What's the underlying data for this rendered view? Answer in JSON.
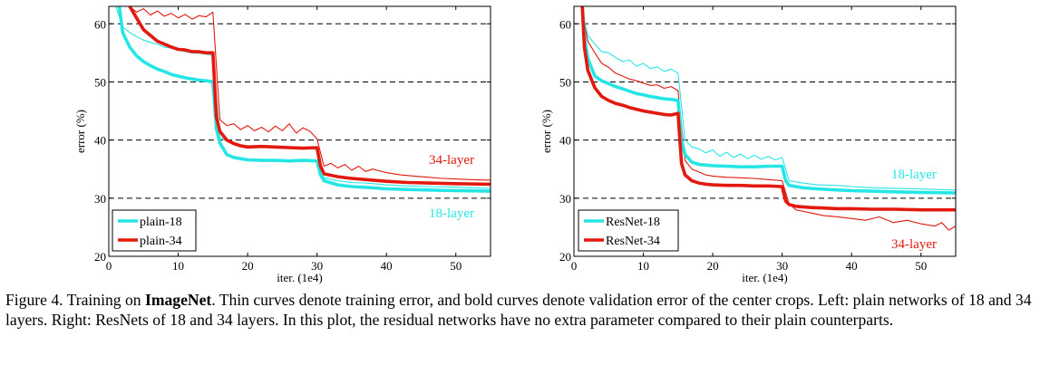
{
  "chart_data": [
    {
      "type": "line",
      "panel": "left",
      "xlabel": "iter. (1e4)",
      "ylabel": "error (%)",
      "xlim": [
        0,
        55
      ],
      "ylim": [
        20,
        63
      ],
      "xticks": [
        "0",
        "10",
        "20",
        "30",
        "40",
        "50"
      ],
      "yticks": [
        "20",
        "30",
        "40",
        "50",
        "60"
      ],
      "dashed_grid_y": [
        30,
        40,
        50,
        60
      ],
      "legend": [
        "plain-18",
        "plain-34"
      ],
      "annotations": [
        {
          "text": "34-layer",
          "color": "#e3190f"
        },
        {
          "text": "18-layer",
          "color": "#26e5e5"
        }
      ],
      "series": [
        {
          "name": "plain-18 training",
          "legend_name": "plain-18",
          "color": "#26e5e5",
          "width": "thin",
          "x": [
            1,
            2,
            3,
            4,
            5,
            6,
            7,
            8,
            9,
            10,
            11,
            12,
            13,
            14,
            15,
            16,
            17,
            18,
            19,
            20,
            21,
            22,
            23,
            24,
            25,
            26,
            27,
            28,
            29,
            30,
            31,
            33,
            35,
            37,
            40,
            43,
            46,
            50,
            52,
            55
          ],
          "y": [
            63,
            59.5,
            58.5,
            57.8,
            57.2,
            56.8,
            56.5,
            56,
            55.8,
            55.5,
            55.2,
            55,
            54.9,
            54.8,
            54.5,
            40.5,
            39.8,
            39.4,
            39.2,
            39,
            39,
            38.9,
            38.8,
            38.9,
            38.7,
            38.6,
            38.8,
            38.6,
            38.5,
            38.4,
            33.5,
            33,
            32.7,
            32.6,
            32.3,
            32.1,
            32,
            31.9,
            31.8,
            31.7
          ]
        },
        {
          "name": "plain-34 training",
          "legend_name": "plain-34",
          "color": "#e3190f",
          "width": "thin",
          "x": [
            3,
            4,
            5,
            6,
            7,
            8,
            9,
            10,
            11,
            12,
            13,
            14,
            15,
            16,
            17,
            18,
            19,
            20,
            21,
            22,
            23,
            24,
            25,
            26,
            27,
            28,
            29,
            30,
            31,
            32,
            33,
            34,
            35,
            36,
            37,
            38,
            40,
            42,
            44,
            46,
            48,
            50,
            52,
            55
          ],
          "y": [
            63,
            62,
            62.6,
            61.5,
            62.2,
            61.3,
            61.8,
            61,
            61.6,
            60.8,
            61.4,
            61.2,
            62,
            43.5,
            42.5,
            42.8,
            41.8,
            42.5,
            41.6,
            42.2,
            41.4,
            42.4,
            41.6,
            42.8,
            41.2,
            42.1,
            41.5,
            40.2,
            35.5,
            36,
            35.2,
            35.8,
            34.8,
            35.5,
            34.6,
            35,
            34.4,
            34,
            33.8,
            33.6,
            33.4,
            33.3,
            33.2,
            33.1
          ]
        },
        {
          "name": "plain-18 validation",
          "legend_name": "plain-18",
          "color": "#26e5e5",
          "width": "bold",
          "x": [
            1.5,
            2,
            3,
            4,
            5,
            6,
            7,
            8,
            9,
            10,
            11,
            12,
            13,
            14,
            15,
            15.5,
            16,
            17,
            18,
            19,
            20,
            22,
            24,
            26,
            28,
            30,
            30.5,
            31,
            33,
            35,
            38,
            40,
            43,
            46,
            50,
            55
          ],
          "y": [
            63,
            58.5,
            56,
            54.5,
            53.5,
            52.8,
            52.2,
            51.8,
            51.3,
            51,
            50.7,
            50.5,
            50.3,
            50.2,
            50,
            42,
            39.5,
            37.5,
            37,
            36.8,
            36.6,
            36.5,
            36.5,
            36.4,
            36.5,
            36.4,
            34,
            33,
            32.3,
            32,
            31.8,
            31.6,
            31.5,
            31.4,
            31.3,
            31.2
          ]
        },
        {
          "name": "plain-34 validation",
          "legend_name": "plain-34",
          "color": "#e3190f",
          "width": "bold",
          "x": [
            3,
            4,
            5,
            6,
            7,
            8,
            9,
            10,
            11,
            12,
            13,
            14,
            15,
            15.5,
            16,
            17,
            18,
            19,
            20,
            22,
            24,
            26,
            28,
            30,
            30.5,
            31,
            33,
            35,
            38,
            40,
            43,
            46,
            50,
            55
          ],
          "y": [
            63,
            61,
            59,
            58,
            57,
            56.5,
            56,
            55.6,
            55.5,
            55.2,
            55.2,
            55,
            55,
            44,
            41.5,
            40,
            39.4,
            39,
            38.8,
            38.9,
            38.8,
            38.7,
            38.6,
            38.7,
            35.5,
            34.2,
            33.7,
            33.4,
            33.1,
            32.9,
            32.7,
            32.6,
            32.5,
            32.4
          ]
        }
      ]
    },
    {
      "type": "line",
      "panel": "right",
      "xlabel": "iter. (1e4)",
      "ylabel": "error (%)",
      "xlim": [
        0,
        55
      ],
      "ylim": [
        20,
        63
      ],
      "xticks": [
        "0",
        "10",
        "20",
        "30",
        "40",
        "50"
      ],
      "yticks": [
        "20",
        "30",
        "40",
        "50",
        "60"
      ],
      "dashed_grid_y": [
        30,
        40,
        50,
        60
      ],
      "legend": [
        "ResNet-18",
        "ResNet-34"
      ],
      "annotations": [
        {
          "text": "18-layer",
          "color": "#26e5e5"
        },
        {
          "text": "34-layer",
          "color": "#e3190f"
        }
      ],
      "series": [
        {
          "name": "ResNet-18 training",
          "legend_name": "ResNet-18",
          "color": "#26e5e5",
          "width": "thin",
          "x": [
            1,
            2,
            3,
            4,
            5,
            6,
            7,
            8,
            9,
            10,
            11,
            12,
            13,
            14,
            15,
            16,
            17,
            18,
            19,
            20,
            21,
            22,
            23,
            24,
            25,
            26,
            27,
            28,
            29,
            30,
            31,
            33,
            35,
            38,
            40,
            43,
            46,
            50,
            52,
            55
          ],
          "y": [
            63,
            58,
            56.5,
            55.2,
            55,
            54.2,
            53.5,
            53.8,
            52.7,
            53.2,
            52.3,
            52.6,
            51.8,
            52.2,
            51.5,
            40,
            38.8,
            38.5,
            37.8,
            38.3,
            37.2,
            37.9,
            37,
            37.6,
            36.8,
            37.4,
            36.7,
            37.2,
            36.6,
            37,
            33,
            32.6,
            32.3,
            32.2,
            32,
            31.8,
            31.7,
            31.6,
            31.5,
            31.4
          ]
        },
        {
          "name": "ResNet-34 training",
          "legend_name": "ResNet-34",
          "color": "#e3190f",
          "width": "thin",
          "x": [
            1,
            2,
            3,
            4,
            5,
            6,
            7,
            8,
            9,
            10,
            11,
            12,
            13,
            14,
            15,
            16,
            17,
            18,
            19,
            20,
            22,
            24,
            26,
            28,
            30,
            31,
            32,
            34,
            36,
            38,
            40,
            42,
            44,
            46,
            48,
            50,
            52,
            53,
            54,
            55
          ],
          "y": [
            63,
            57,
            55,
            53.2,
            52.5,
            51.5,
            51,
            50.5,
            50.2,
            49.8,
            49.4,
            49.5,
            48.9,
            49.2,
            48.5,
            36.5,
            35,
            34.5,
            34,
            33.8,
            33.6,
            33.5,
            33.4,
            33.2,
            33,
            29,
            28,
            27.5,
            27,
            26.8,
            26.5,
            26.2,
            26.8,
            25.8,
            26.2,
            25.6,
            25.2,
            25.8,
            24.5,
            25.2
          ]
        },
        {
          "name": "ResNet-18 validation",
          "legend_name": "ResNet-18",
          "color": "#26e5e5",
          "width": "bold",
          "x": [
            1.2,
            1.5,
            2,
            3,
            4,
            5,
            6,
            7,
            8,
            9,
            10,
            11,
            12,
            13,
            14,
            15,
            15.5,
            16,
            17,
            18,
            20,
            22,
            24,
            26,
            28,
            30,
            30.5,
            31,
            33,
            35,
            38,
            40,
            43,
            46,
            50,
            55
          ],
          "y": [
            63,
            58,
            54,
            51,
            50.2,
            49.7,
            49.2,
            48.8,
            48.4,
            48,
            47.8,
            47.5,
            47.3,
            47.1,
            47,
            46.8,
            40,
            37.5,
            36.2,
            35.8,
            35.6,
            35.5,
            35.4,
            35.4,
            35.5,
            35.5,
            33,
            32.2,
            31.8,
            31.6,
            31.4,
            31.3,
            31.2,
            31.1,
            31,
            30.9
          ]
        },
        {
          "name": "ResNet-34 validation",
          "legend_name": "ResNet-34",
          "color": "#e3190f",
          "width": "bold",
          "x": [
            1.2,
            1.5,
            2,
            3,
            4,
            5,
            6,
            7,
            8,
            9,
            10,
            11,
            12,
            13,
            14,
            15,
            15.5,
            16,
            17,
            18,
            19,
            20,
            22,
            24,
            26,
            28,
            30,
            30.5,
            31,
            32,
            34,
            36,
            38,
            40,
            43,
            46,
            50,
            55
          ],
          "y": [
            63,
            56,
            52,
            49,
            47.5,
            46.8,
            46.3,
            46,
            45.6,
            45.3,
            45,
            44.8,
            44.6,
            44.4,
            44.3,
            44.6,
            36,
            34,
            33,
            32.6,
            32.4,
            32.3,
            32.2,
            32.2,
            32.1,
            32.1,
            32,
            29.5,
            28.9,
            28.6,
            28.4,
            28.3,
            28.2,
            28.2,
            28.1,
            28.1,
            28,
            28
          ]
        }
      ]
    }
  ],
  "caption": {
    "prefix": "Figure 4. Training on ",
    "bold": "ImageNet",
    "rest": ". Thin curves denote training error, and bold curves denote validation error of the center crops. Left: plain networks of 18 and 34 layers. Right: ResNets of 18 and 34 layers. In this plot, the residual networks have no extra parameter compared to their plain counterparts."
  }
}
